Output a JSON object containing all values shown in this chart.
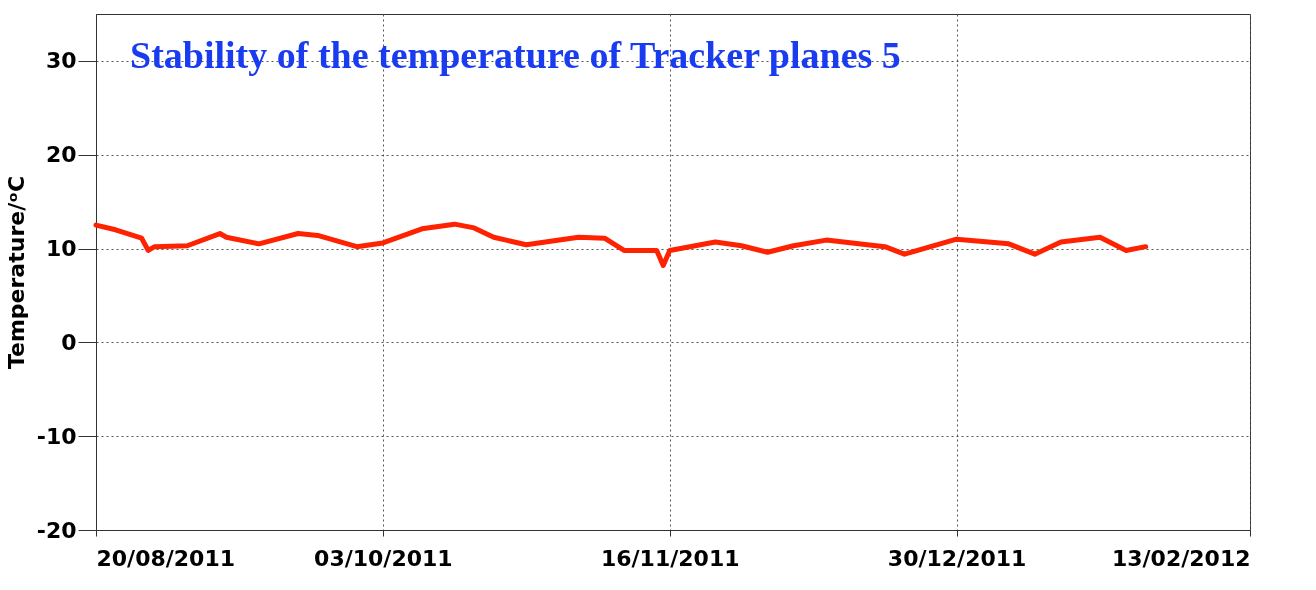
{
  "chart_data": {
    "type": "line",
    "title": "Stability of the temperature of Tracker planes 5",
    "ylabel": "Temperature/ᵒC",
    "x": [
      "2011-08-20",
      "2011-08-23",
      "2011-08-27",
      "2011-08-28",
      "2011-08-29",
      "2011-09-03",
      "2011-09-08",
      "2011-09-09",
      "2011-09-14",
      "2011-09-20",
      "2011-09-23",
      "2011-09-29",
      "2011-10-03",
      "2011-10-09",
      "2011-10-14",
      "2011-10-17",
      "2011-10-20",
      "2011-10-25",
      "2011-11-02",
      "2011-11-06",
      "2011-11-09",
      "2011-11-14",
      "2011-11-15",
      "2011-11-16",
      "2011-11-23",
      "2011-11-27",
      "2011-12-01",
      "2011-12-05",
      "2011-12-10",
      "2011-12-19",
      "2011-12-22",
      "2011-12-30",
      "2012-01-07",
      "2012-01-11",
      "2012-01-15",
      "2012-01-21",
      "2012-01-25",
      "2012-01-28"
    ],
    "series": [
      {
        "color": "#ff2200",
        "values": [
          12.5,
          12.0,
          11.1,
          9.8,
          10.2,
          10.3,
          11.6,
          11.2,
          10.5,
          11.6,
          11.4,
          10.2,
          10.6,
          12.1,
          12.6,
          12.2,
          11.2,
          10.4,
          11.2,
          11.1,
          9.8,
          9.8,
          8.2,
          9.8,
          10.7,
          10.3,
          9.6,
          10.3,
          10.9,
          10.2,
          9.4,
          11.0,
          10.5,
          9.4,
          10.7,
          11.2,
          9.8,
          10.2
        ]
      }
    ],
    "xlim": [
      "2011-08-20",
      "2012-02-13"
    ],
    "xticks": [
      {
        "value": "2011-08-20",
        "label": "20/08/2011"
      },
      {
        "value": "2011-10-03",
        "label": "03/10/2011"
      },
      {
        "value": "2011-11-16",
        "label": "16/11/2011"
      },
      {
        "value": "2011-12-30",
        "label": "30/12/2011"
      },
      {
        "value": "2012-02-13",
        "label": "13/02/2012"
      }
    ],
    "ylim": [
      -20,
      35
    ],
    "yticks": [
      -20,
      -10,
      0,
      10,
      20,
      30
    ],
    "grid": true,
    "marker": "none",
    "line_style": "solid"
  }
}
